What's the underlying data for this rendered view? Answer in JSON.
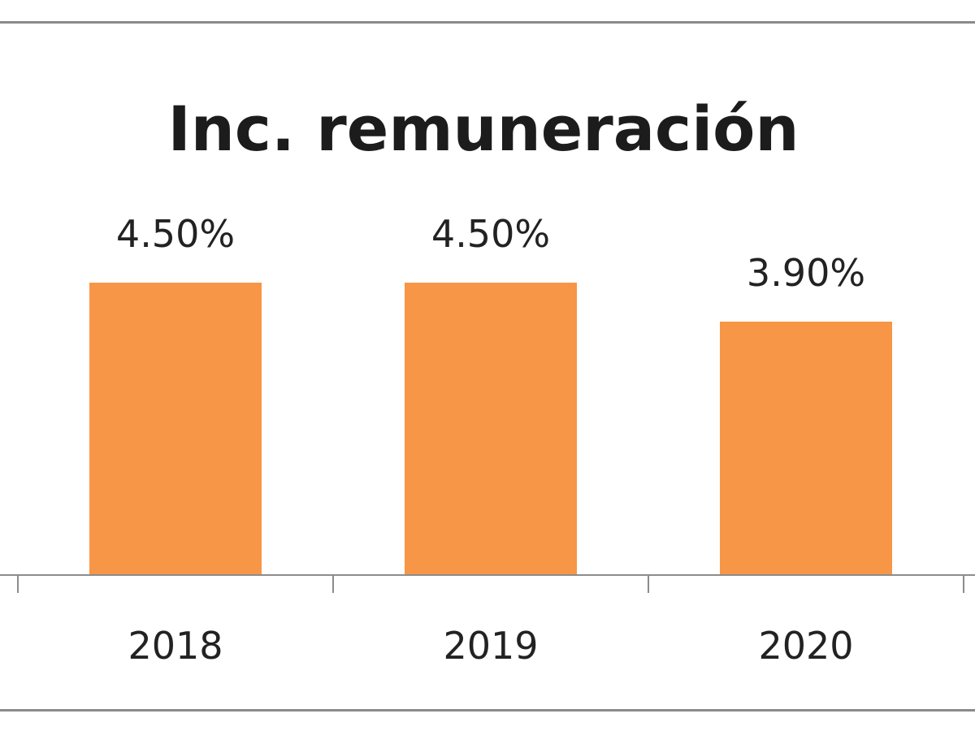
{
  "chart_data": {
    "type": "bar",
    "title": "Inc. remuneración",
    "categories": [
      "2018",
      "2019",
      "2020"
    ],
    "values": [
      4.5,
      4.5,
      3.9
    ],
    "data_labels": [
      "4.50%",
      "4.50%",
      "3.90%"
    ],
    "ylim": [
      0,
      5.6
    ],
    "grid": false,
    "legend": "none",
    "xlabel": "",
    "ylabel": "",
    "colors": {
      "bar": "#f79646",
      "axis": "#8c8c8c",
      "text": "#222222"
    }
  }
}
